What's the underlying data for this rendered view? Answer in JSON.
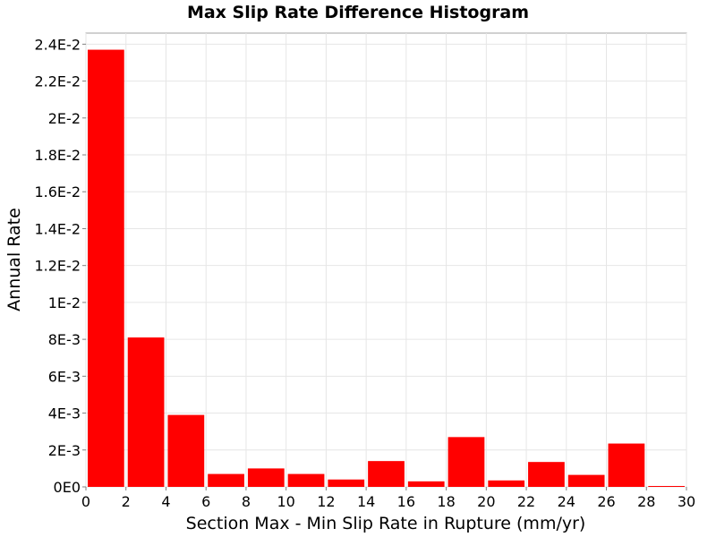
{
  "chart_data": {
    "type": "bar",
    "title": "Max Slip Rate Difference Histogram",
    "xlabel": "Section Max - Min Slip Rate in Rupture (mm/yr)",
    "ylabel": "Annual Rate",
    "xlim": [
      0,
      30
    ],
    "ylim": [
      0,
      0.0246
    ],
    "grid": true,
    "bar_color": "#ff0000",
    "bin_width": 2,
    "x": [
      1,
      3,
      5,
      7,
      9,
      11,
      13,
      15,
      17,
      19,
      21,
      23,
      25,
      27,
      29
    ],
    "values": [
      0.0237,
      0.0081,
      0.0039,
      0.0007,
      0.001,
      0.0007,
      0.0004,
      0.0014,
      0.0003,
      0.0027,
      0.00035,
      0.00135,
      0.00065,
      0.00235,
      4e-05
    ],
    "x_ticks": [
      0,
      2,
      4,
      6,
      8,
      10,
      12,
      14,
      16,
      18,
      20,
      22,
      24,
      26,
      28,
      30
    ],
    "x_tick_labels": [
      "0",
      "2",
      "4",
      "6",
      "8",
      "10",
      "12",
      "14",
      "16",
      "18",
      "20",
      "22",
      "24",
      "26",
      "28",
      "30"
    ],
    "y_ticks": [
      0,
      0.002,
      0.004,
      0.006,
      0.008,
      0.01,
      0.012,
      0.014,
      0.016,
      0.018,
      0.02,
      0.022,
      0.024
    ],
    "y_tick_labels": [
      "0E0",
      "2E-3",
      "4E-3",
      "6E-3",
      "8E-3",
      "1E-2",
      "1.2E-2",
      "1.4E-2",
      "1.6E-2",
      "1.8E-2",
      "2E-2",
      "2.2E-2",
      "2.4E-2"
    ]
  }
}
